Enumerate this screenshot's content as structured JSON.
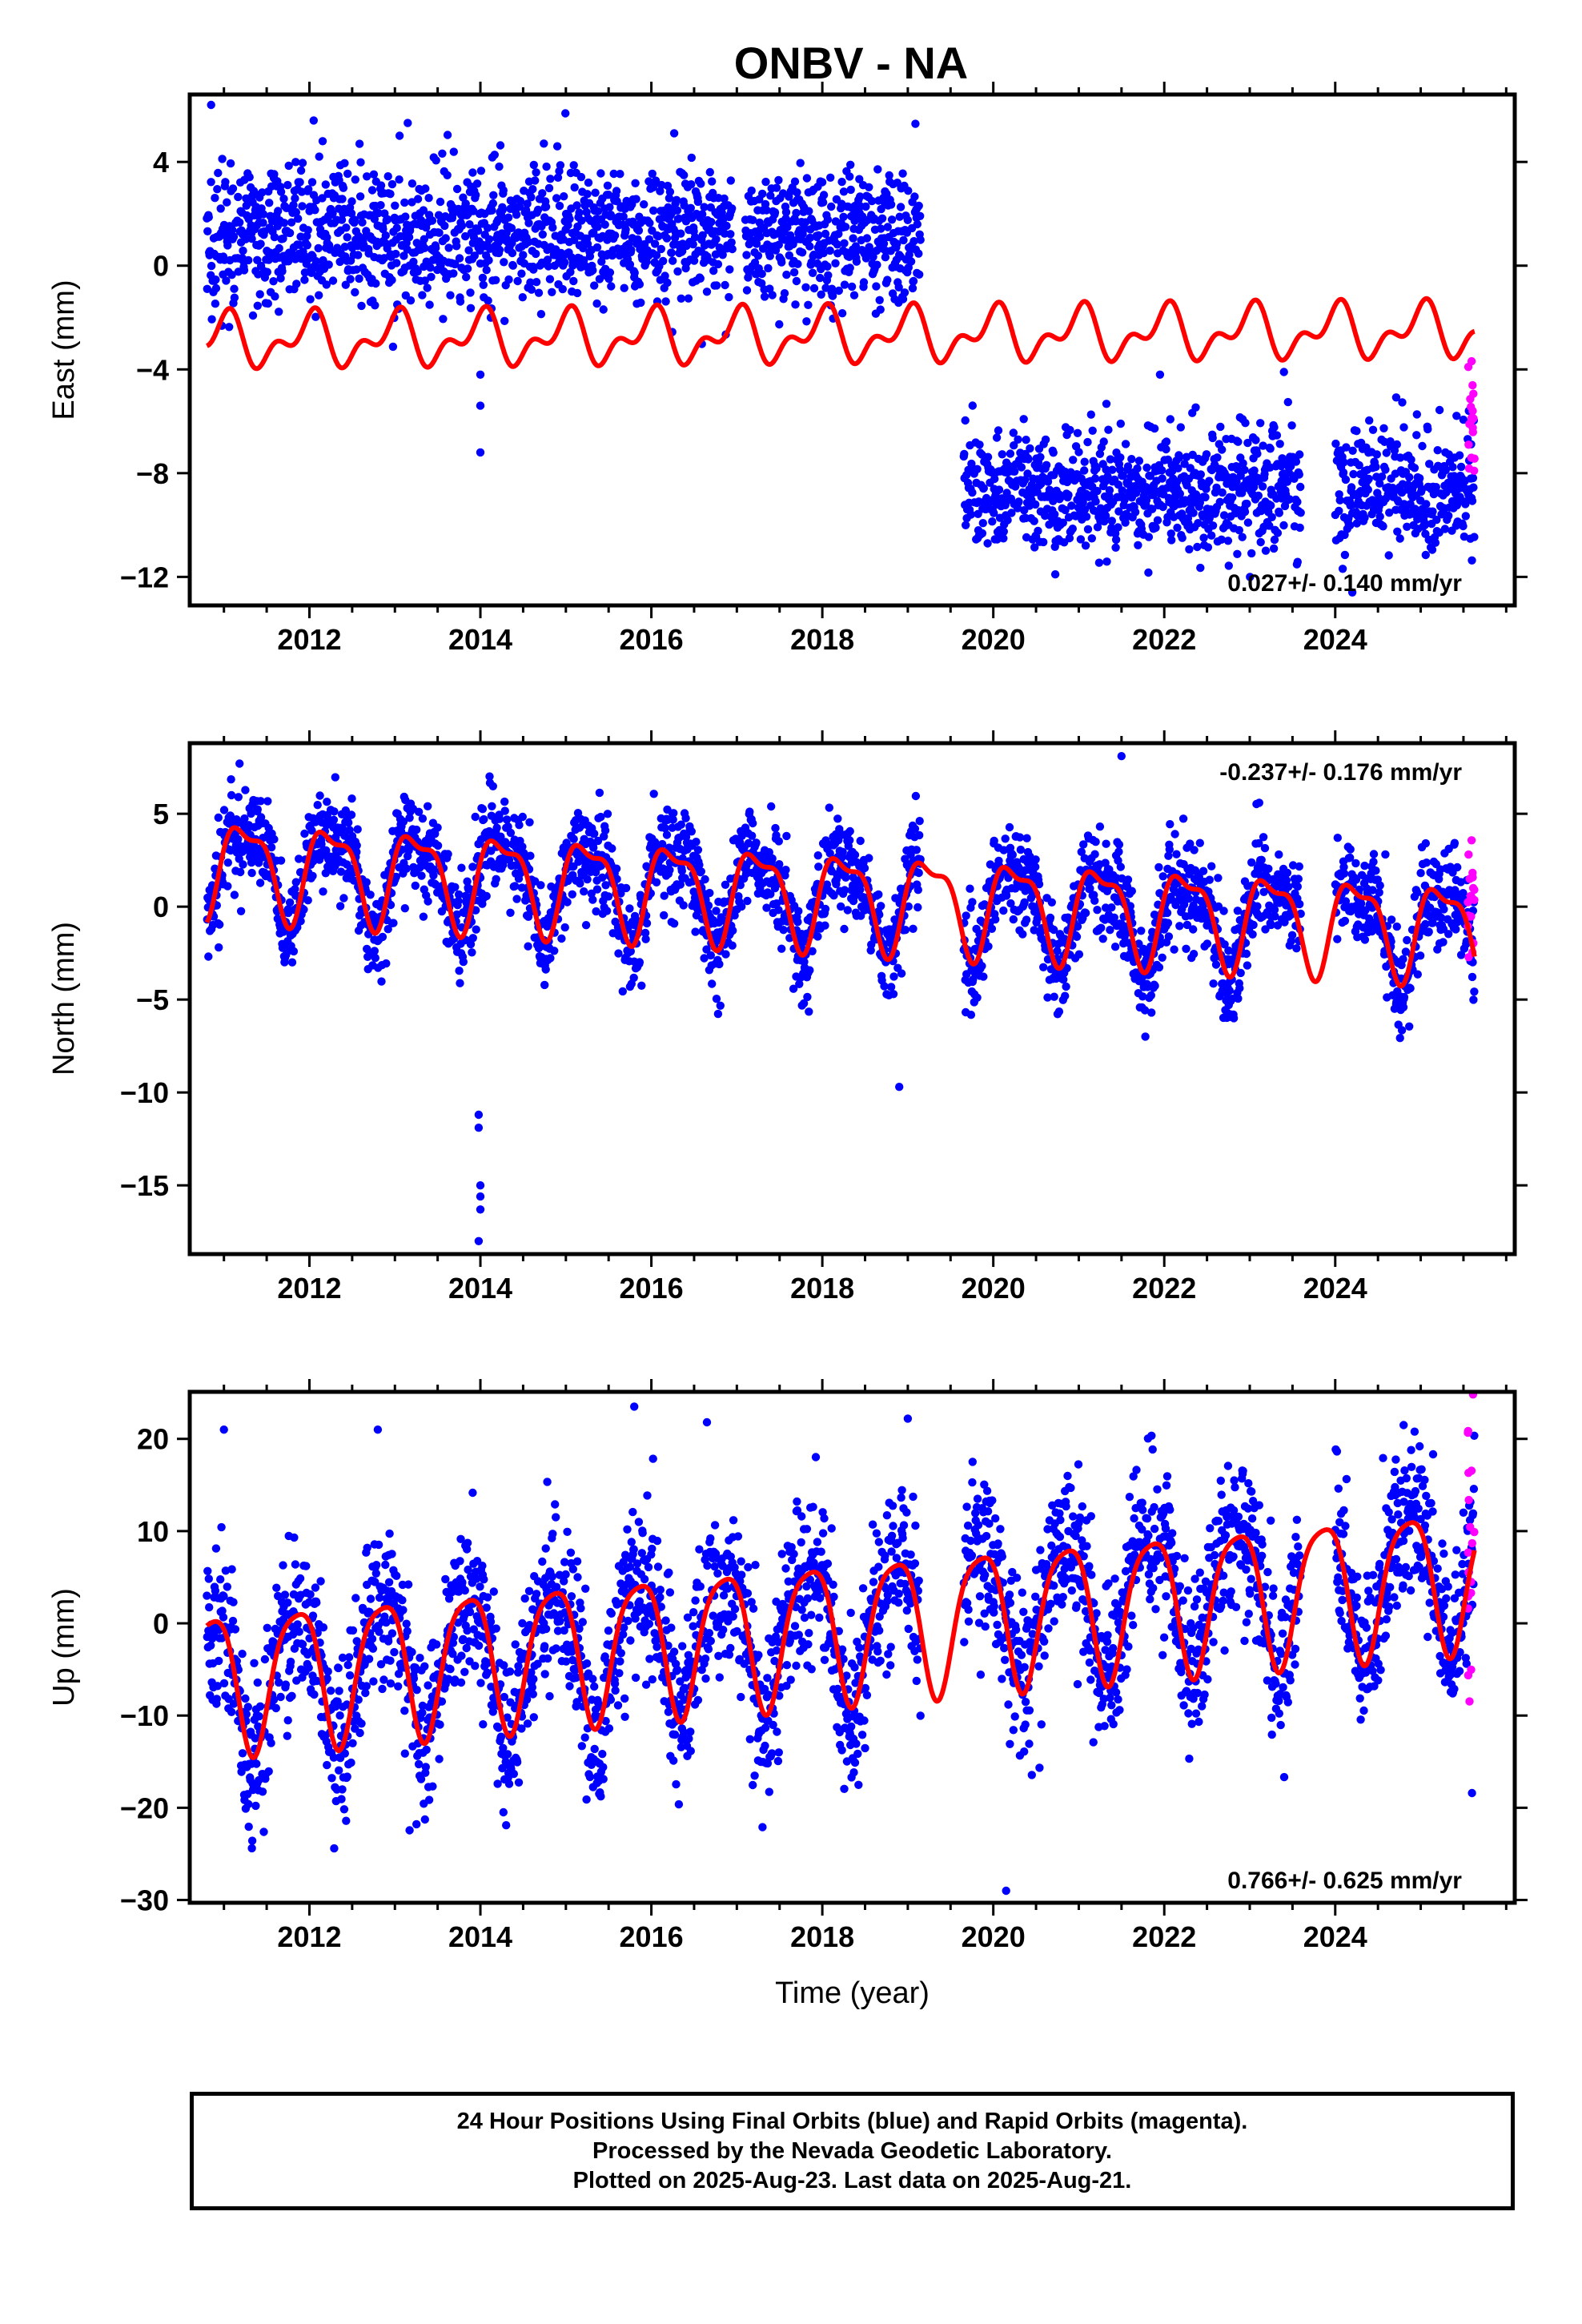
{
  "title": "ONBV - NA",
  "caption": [
    "24 Hour Positions Using Final Orbits (blue) and Rapid Orbits (magenta).",
    "Processed by the Nevada Geodetic Laboratory.",
    "Plotted on 2025-Aug-23. Last data on 2025-Aug-21."
  ],
  "colors": {
    "final": "#0000ff",
    "rapid": "#ff00ff",
    "model": "#ff0000"
  },
  "chart_data": [
    {
      "type": "scatter",
      "component": "east",
      "ylabel": "East (mm)",
      "xlabel": "",
      "xlim": [
        2010.6,
        2026.1
      ],
      "ylim": [
        -13.1,
        6.6
      ],
      "xticks": [
        2012,
        2014,
        2016,
        2018,
        2020,
        2022,
        2024
      ],
      "yticks": [
        -12,
        -8,
        -4,
        0,
        4
      ],
      "rate_label": "0.027+/- 0.140 mm/yr",
      "rate_position": "bottom-right",
      "data_span": [
        2010.8,
        2025.63
      ],
      "gaps": [
        [
          2016.95,
          2017.1
        ],
        [
          2019.15,
          2019.65
        ],
        [
          2023.6,
          2024.0
        ]
      ],
      "segments": [
        {
          "start": 2010.8,
          "end": 2019.15,
          "center": 1.2,
          "spread": 1.3
        },
        {
          "start": 2019.65,
          "end": 2025.63,
          "center": -8.7,
          "spread": 1.2
        }
      ],
      "rapid": {
        "start": 2025.55,
        "end": 2025.63,
        "center": -6.0,
        "spread": 1.0
      },
      "outliers": [
        [
          2010.85,
          6.2
        ],
        [
          2012.05,
          5.6
        ],
        [
          2013.15,
          5.5
        ],
        [
          2014.0,
          -4.2
        ],
        [
          2014.0,
          -5.4
        ],
        [
          2014.0,
          -7.2
        ],
        [
          2021.95,
          -4.2
        ],
        [
          2023.4,
          -4.1
        ],
        [
          2024.2,
          -12.6
        ]
      ],
      "model": {
        "start": 2010.8,
        "end": 2025.63,
        "offset": -2.7,
        "rate": 0.027,
        "annual_amp": 0.8,
        "annual_phase": 1.6,
        "semi_amp": 0.55,
        "semi_phase": 0.4
      }
    },
    {
      "type": "scatter",
      "component": "north",
      "ylabel": "North (mm)",
      "xlabel": "",
      "xlim": [
        2010.6,
        2026.1
      ],
      "ylim": [
        -18.7,
        8.8
      ],
      "xticks": [
        2012,
        2014,
        2016,
        2018,
        2020,
        2022,
        2024
      ],
      "yticks": [
        -15,
        -10,
        -5,
        0,
        5
      ],
      "rate_label": "-0.237+/- 0.176 mm/yr",
      "rate_position": "top-right",
      "data_span": [
        2010.8,
        2025.63
      ],
      "gaps": [
        [
          2019.15,
          2019.65
        ],
        [
          2023.6,
          2024.0
        ]
      ],
      "segments": [
        {
          "start": 2010.8,
          "end": 2019.15,
          "center": 0.5,
          "spread": 1.3
        },
        {
          "start": 2019.65,
          "end": 2025.63,
          "center": 0.3,
          "spread": 1.3
        }
      ],
      "rapid": {
        "start": 2025.55,
        "end": 2025.63,
        "center": 0.0,
        "spread": 1.8
      },
      "outliers": [
        [
          2013.98,
          -11.2
        ],
        [
          2013.98,
          -11.9
        ],
        [
          2014.0,
          -15.0
        ],
        [
          2014.0,
          -15.6
        ],
        [
          2014.0,
          -16.3
        ],
        [
          2013.98,
          -18.0
        ],
        [
          2018.9,
          -9.7
        ],
        [
          2021.85,
          -5.7
        ],
        [
          2021.5,
          8.1
        ]
      ],
      "model": {
        "start": 2010.8,
        "end": 2025.63,
        "offset": 0.6,
        "rate": -0.237,
        "annual_amp": 2.4,
        "annual_phase": 0.0,
        "semi_amp": 0.9,
        "semi_phase": 1.2
      }
    },
    {
      "type": "scatter",
      "component": "up",
      "ylabel": "Up (mm)",
      "xlabel": "Time (year)",
      "xlim": [
        2010.6,
        2026.1
      ],
      "ylim": [
        -30.3,
        25.1
      ],
      "xticks": [
        2012,
        2014,
        2016,
        2018,
        2020,
        2022,
        2024
      ],
      "yticks": [
        -30,
        -20,
        -10,
        0,
        10,
        20
      ],
      "rate_label": "0.766+/- 0.625 mm/yr",
      "rate_position": "bottom-right",
      "data_span": [
        2010.8,
        2025.63
      ],
      "gaps": [
        [
          2019.15,
          2019.65
        ],
        [
          2023.6,
          2024.0
        ]
      ],
      "segments": [
        {
          "start": 2010.8,
          "end": 2019.15,
          "center": -1.0,
          "spread": 4.5
        },
        {
          "start": 2019.65,
          "end": 2025.63,
          "center": 1.5,
          "spread": 4.5
        }
      ],
      "rapid": {
        "start": 2025.55,
        "end": 2025.63,
        "center": 6.0,
        "spread": 8.0
      },
      "outliers": [
        [
          2015.8,
          23.5
        ],
        [
          2019.0,
          22.2
        ],
        [
          2020.15,
          -29.0
        ],
        [
          2017.3,
          -22.1
        ],
        [
          2011.0,
          21.0
        ],
        [
          2012.8,
          21.0
        ],
        [
          2016.65,
          21.8
        ],
        [
          2024.8,
          21.5
        ],
        [
          2025.6,
          -18.4
        ]
      ],
      "model": {
        "start": 2010.8,
        "end": 2025.63,
        "offset": -0.5,
        "rate": 0.766,
        "annual_amp": 7.5,
        "annual_phase": 2.5,
        "semi_amp": 1.5,
        "semi_phase": 0.5
      }
    }
  ]
}
